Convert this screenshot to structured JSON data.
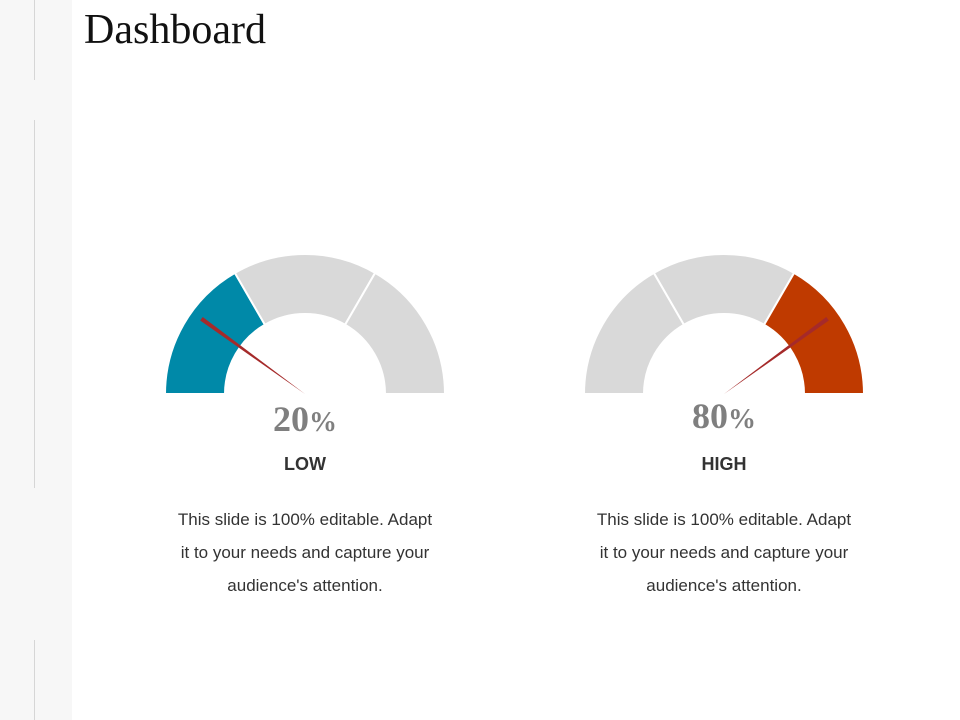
{
  "page_title": "Dashboard",
  "colors": {
    "low_accent": "#0089A8",
    "high_accent": "#BF3A00",
    "segment_gray": "#D9D9D9",
    "needle": "#A52A2A"
  },
  "chart_data": [
    {
      "type": "gauge",
      "value": 20,
      "unit": "%",
      "label": "LOW",
      "segments": [
        {
          "from": 0,
          "to": 33.3,
          "color": "#0089A8"
        },
        {
          "from": 33.3,
          "to": 66.7,
          "color": "#D9D9D9"
        },
        {
          "from": 66.7,
          "to": 100,
          "color": "#D9D9D9"
        }
      ],
      "description": "This slide is 100% editable. Adapt it to your needs and capture your audience's attention.",
      "description_lines": [
        "This slide is 100% editable. Adapt",
        "it to your needs and capture your",
        "audience's attention."
      ]
    },
    {
      "type": "gauge",
      "value": 80,
      "unit": "%",
      "label": "HIGH",
      "segments": [
        {
          "from": 0,
          "to": 33.3,
          "color": "#D9D9D9"
        },
        {
          "from": 33.3,
          "to": 66.7,
          "color": "#D9D9D9"
        },
        {
          "from": 66.7,
          "to": 100,
          "color": "#BF3A00"
        }
      ],
      "description": "This slide is 100% editable. Adapt it to your needs and capture your audience's attention.",
      "description_lines": [
        "This slide is 100% editable. Adapt",
        "it to your needs and capture your",
        "audience's attention."
      ]
    }
  ]
}
